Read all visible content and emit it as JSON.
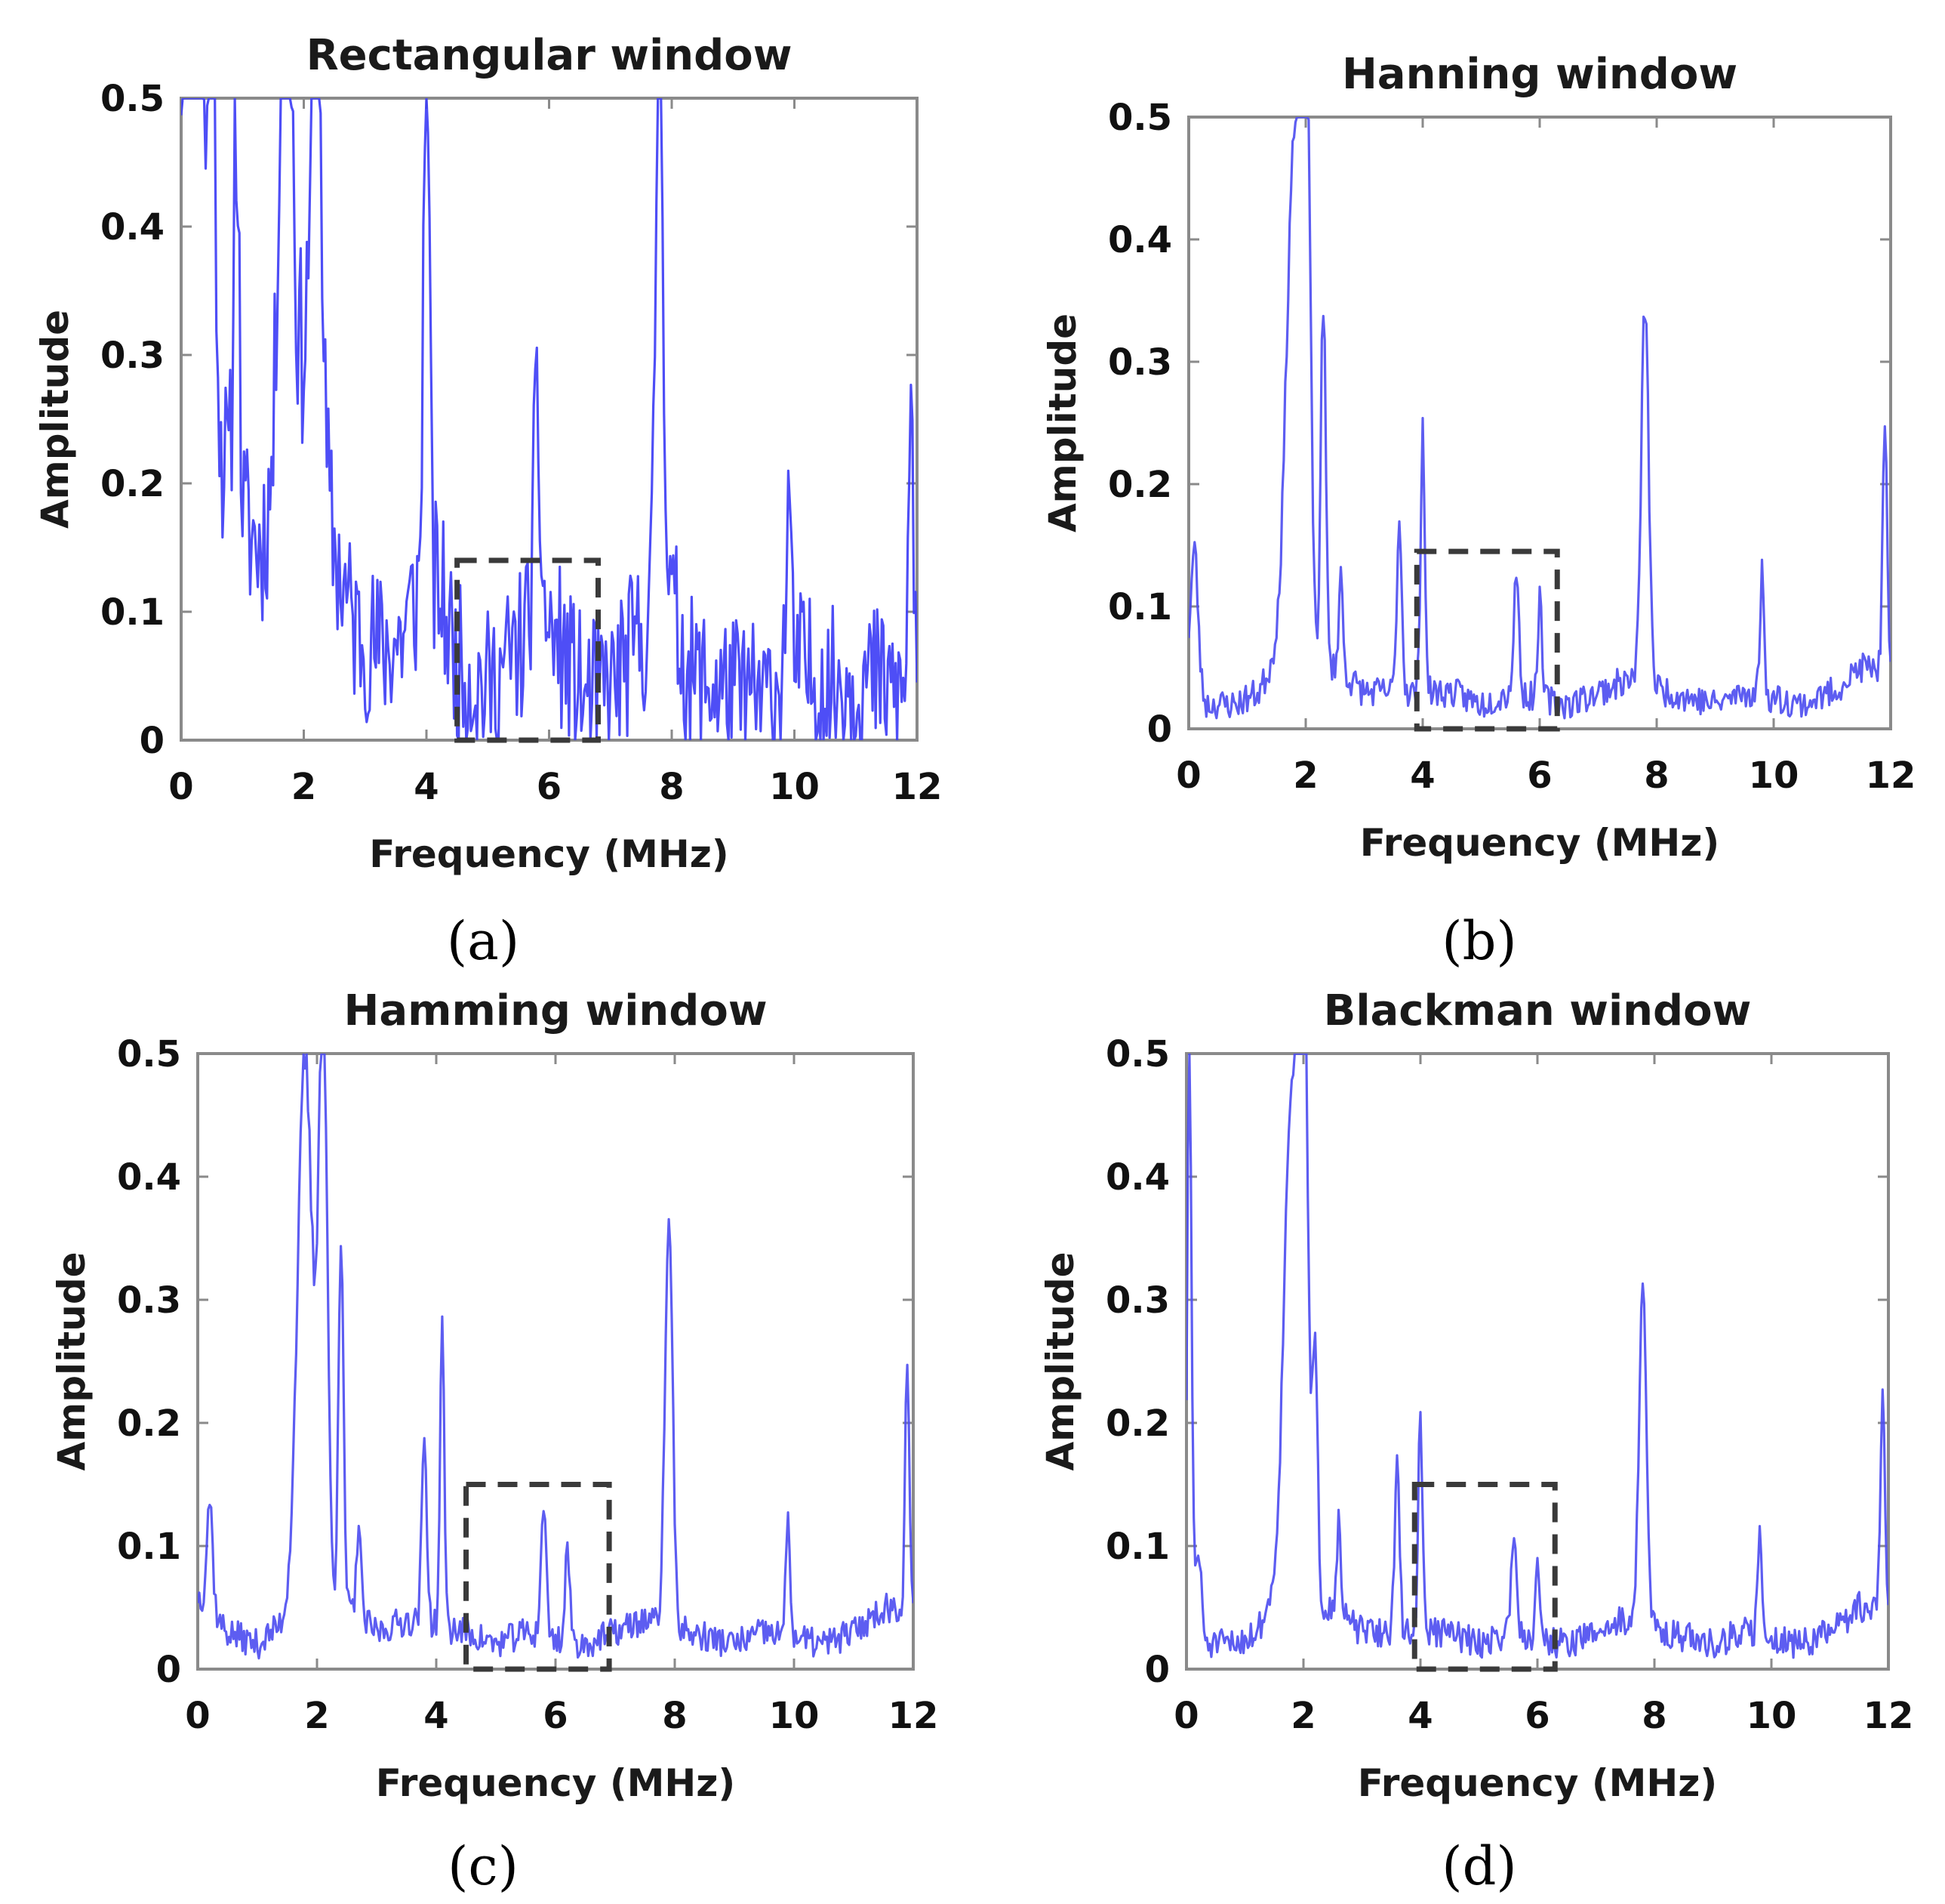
{
  "figure": {
    "panel_labels": [
      "(a)",
      "(b)",
      "(c)",
      "(d)"
    ]
  },
  "chart_data": [
    {
      "id": "a",
      "type": "line",
      "title": "Rectangular window",
      "xlabel": "Frequency (MHz)",
      "ylabel": "Amplitude",
      "xlim": [
        0,
        12
      ],
      "ylim": [
        0,
        0.5
      ],
      "xticks": [
        "0",
        "2",
        "4",
        "6",
        "8",
        "10",
        "12"
      ],
      "yticks": [
        "0",
        "0.1",
        "0.2",
        "0.3",
        "0.4",
        "0.5"
      ],
      "series_color": "#3b3bf5",
      "highlight_box": {
        "x0": 4.5,
        "x1": 6.8,
        "y0": 0.0,
        "y1": 0.14
      },
      "baseline_points": [
        [
          0,
          0.45
        ],
        [
          0.1,
          0.3
        ],
        [
          0.3,
          0.35
        ],
        [
          0.5,
          0.25
        ],
        [
          0.8,
          0.2
        ],
        [
          1.0,
          0.17
        ],
        [
          1.3,
          0.15
        ],
        [
          1.5,
          0.2
        ],
        [
          1.7,
          0.3
        ],
        [
          2.0,
          0.3
        ],
        [
          2.2,
          0.25
        ],
        [
          2.5,
          0.15
        ],
        [
          2.8,
          0.09
        ],
        [
          3.2,
          0.07
        ],
        [
          3.6,
          0.08
        ],
        [
          3.9,
          0.12
        ],
        [
          4.2,
          0.12
        ],
        [
          4.5,
          0.06
        ],
        [
          5.0,
          0.04
        ],
        [
          5.5,
          0.07
        ],
        [
          5.8,
          0.1
        ],
        [
          6.2,
          0.07
        ],
        [
          6.6,
          0.03
        ],
        [
          7.0,
          0.04
        ],
        [
          7.5,
          0.08
        ],
        [
          7.9,
          0.12
        ],
        [
          8.3,
          0.05
        ],
        [
          8.8,
          0.04
        ],
        [
          9.5,
          0.03
        ],
        [
          10.0,
          0.06
        ],
        [
          10.5,
          0.04
        ],
        [
          11.0,
          0.05
        ],
        [
          11.6,
          0.04
        ],
        [
          11.95,
          0.03
        ]
      ],
      "peaks": [
        [
          0.2,
          0.5,
          0.15
        ],
        [
          0.5,
          0.38,
          0.08
        ],
        [
          0.9,
          0.32,
          0.06
        ],
        [
          1.7,
          0.5,
          0.12
        ],
        [
          2.2,
          0.5,
          0.1
        ],
        [
          4.0,
          0.5,
          0.06
        ],
        [
          5.8,
          0.14,
          0.08
        ],
        [
          7.8,
          0.5,
          0.08
        ],
        [
          9.9,
          0.14,
          0.05
        ],
        [
          11.9,
          0.26,
          0.05
        ]
      ],
      "noise": 0.06,
      "seed": 11
    },
    {
      "id": "b",
      "type": "line",
      "title": "Hanning window",
      "xlabel": "Frequency (MHz)",
      "ylabel": "Amplitude",
      "xlim": [
        0,
        12
      ],
      "ylim": [
        0,
        0.5
      ],
      "xticks": [
        "0",
        "2",
        "4",
        "6",
        "8",
        "10",
        "12"
      ],
      "yticks": [
        "0",
        "0.1",
        "0.2",
        "0.3",
        "0.4",
        "0.5"
      ],
      "series_color": "#4b4bf0",
      "highlight_box": {
        "x0": 3.9,
        "x1": 6.3,
        "y0": 0.0,
        "y1": 0.145
      },
      "baseline_points": [
        [
          0,
          0.06
        ],
        [
          0.3,
          0.02
        ],
        [
          0.8,
          0.02
        ],
        [
          1.2,
          0.03
        ],
        [
          1.5,
          0.06
        ],
        [
          2.5,
          0.05
        ],
        [
          3.0,
          0.03
        ],
        [
          3.5,
          0.03
        ],
        [
          4.5,
          0.03
        ],
        [
          5.0,
          0.02
        ],
        [
          5.5,
          0.03
        ],
        [
          6.5,
          0.02
        ],
        [
          7.0,
          0.03
        ],
        [
          7.5,
          0.04
        ],
        [
          8.2,
          0.03
        ],
        [
          9.0,
          0.02
        ],
        [
          9.5,
          0.03
        ],
        [
          10.5,
          0.02
        ],
        [
          11.0,
          0.03
        ],
        [
          11.5,
          0.05
        ],
        [
          11.95,
          0.05
        ]
      ],
      "peaks": [
        [
          0.1,
          0.1,
          0.08
        ],
        [
          1.8,
          0.42,
          0.18
        ],
        [
          2.0,
          0.5,
          0.1
        ],
        [
          2.3,
          0.3,
          0.06
        ],
        [
          2.6,
          0.08,
          0.05
        ],
        [
          3.6,
          0.14,
          0.06
        ],
        [
          4.0,
          0.22,
          0.05
        ],
        [
          5.6,
          0.1,
          0.06
        ],
        [
          6.0,
          0.08,
          0.05
        ],
        [
          7.8,
          0.31,
          0.09
        ],
        [
          9.8,
          0.1,
          0.05
        ],
        [
          11.9,
          0.2,
          0.05
        ]
      ],
      "noise": 0.012,
      "seed": 23
    },
    {
      "id": "c",
      "type": "line",
      "title": "Hamming window",
      "xlabel": "Frequency (MHz)",
      "ylabel": "Amplitude",
      "xlim": [
        0,
        12
      ],
      "ylim": [
        0,
        0.5
      ],
      "xticks": [
        "0",
        "2",
        "4",
        "6",
        "8",
        "10",
        "12"
      ],
      "yticks": [
        "0",
        "0.1",
        "0.2",
        "0.3",
        "0.4",
        "0.5"
      ],
      "series_color": "#4b4bf0",
      "highlight_box": {
        "x0": 4.5,
        "x1": 6.9,
        "y0": 0.0,
        "y1": 0.15
      },
      "baseline_points": [
        [
          0,
          0.06
        ],
        [
          0.5,
          0.03
        ],
        [
          1.0,
          0.02
        ],
        [
          1.5,
          0.04
        ],
        [
          2.5,
          0.05
        ],
        [
          3.0,
          0.03
        ],
        [
          3.5,
          0.04
        ],
        [
          4.5,
          0.03
        ],
        [
          5.0,
          0.02
        ],
        [
          5.5,
          0.03
        ],
        [
          6.5,
          0.02
        ],
        [
          7.0,
          0.03
        ],
        [
          7.5,
          0.04
        ],
        [
          8.2,
          0.03
        ],
        [
          9.0,
          0.02
        ],
        [
          9.5,
          0.03
        ],
        [
          10.5,
          0.02
        ],
        [
          11.0,
          0.03
        ],
        [
          11.5,
          0.05
        ],
        [
          11.95,
          0.05
        ]
      ],
      "peaks": [
        [
          0.2,
          0.09,
          0.07
        ],
        [
          1.8,
          0.45,
          0.18
        ],
        [
          2.1,
          0.5,
          0.1
        ],
        [
          2.4,
          0.3,
          0.06
        ],
        [
          2.7,
          0.08,
          0.05
        ],
        [
          3.8,
          0.15,
          0.06
        ],
        [
          4.1,
          0.24,
          0.05
        ],
        [
          5.8,
          0.11,
          0.06
        ],
        [
          6.2,
          0.08,
          0.05
        ],
        [
          7.9,
          0.33,
          0.09
        ],
        [
          9.9,
          0.1,
          0.05
        ],
        [
          11.9,
          0.2,
          0.05
        ]
      ],
      "noise": 0.012,
      "seed": 37
    },
    {
      "id": "d",
      "type": "line",
      "title": "Blackman window",
      "xlabel": "Frequency (MHz)",
      "ylabel": "Amplitude",
      "xlim": [
        0,
        12
      ],
      "ylim": [
        0,
        0.5
      ],
      "xticks": [
        "0",
        "2",
        "4",
        "6",
        "8",
        "10",
        "12"
      ],
      "yticks": [
        "0",
        "0.1",
        "0.2",
        "0.3",
        "0.4",
        "0.5"
      ],
      "series_color": "#4b4bf0",
      "highlight_box": {
        "x0": 3.9,
        "x1": 6.3,
        "y0": 0.0,
        "y1": 0.15
      },
      "baseline_points": [
        [
          0,
          0.06
        ],
        [
          0.3,
          0.02
        ],
        [
          0.8,
          0.02
        ],
        [
          1.2,
          0.03
        ],
        [
          1.5,
          0.06
        ],
        [
          2.5,
          0.05
        ],
        [
          3.0,
          0.03
        ],
        [
          3.5,
          0.03
        ],
        [
          4.5,
          0.03
        ],
        [
          5.0,
          0.02
        ],
        [
          5.5,
          0.03
        ],
        [
          6.5,
          0.02
        ],
        [
          7.0,
          0.03
        ],
        [
          7.5,
          0.04
        ],
        [
          8.2,
          0.03
        ],
        [
          9.0,
          0.02
        ],
        [
          9.5,
          0.03
        ],
        [
          10.5,
          0.02
        ],
        [
          11.0,
          0.03
        ],
        [
          11.5,
          0.05
        ],
        [
          11.95,
          0.05
        ]
      ],
      "peaks": [
        [
          0.05,
          0.45,
          0.05
        ],
        [
          0.2,
          0.06,
          0.08
        ],
        [
          1.8,
          0.42,
          0.18
        ],
        [
          2.0,
          0.5,
          0.1
        ],
        [
          2.2,
          0.22,
          0.06
        ],
        [
          2.6,
          0.07,
          0.05
        ],
        [
          3.6,
          0.13,
          0.06
        ],
        [
          4.0,
          0.18,
          0.05
        ],
        [
          5.6,
          0.09,
          0.06
        ],
        [
          6.0,
          0.07,
          0.05
        ],
        [
          7.8,
          0.27,
          0.09
        ],
        [
          9.8,
          0.09,
          0.05
        ],
        [
          11.9,
          0.18,
          0.05
        ]
      ],
      "noise": 0.012,
      "seed": 51
    }
  ]
}
